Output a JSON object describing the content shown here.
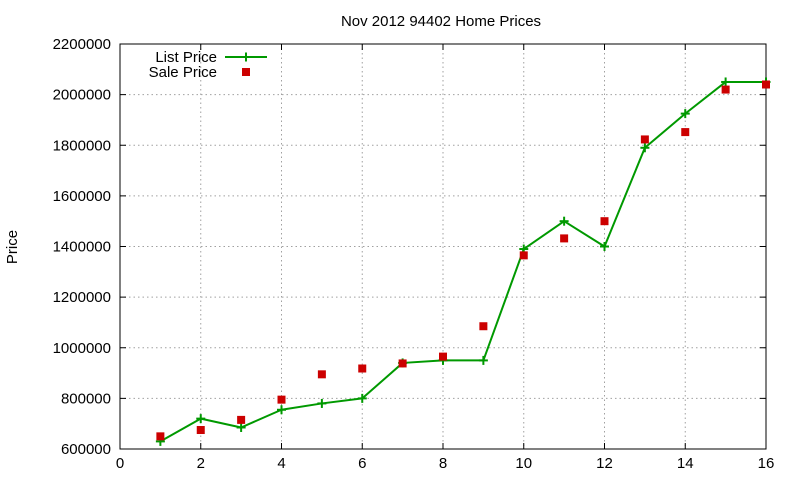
{
  "chart_data": {
    "type": "line",
    "title": "Nov 2012 94402 Home Prices",
    "xlabel": "",
    "ylabel": "Price",
    "xlim": [
      0,
      16
    ],
    "ylim": [
      600000,
      2200000
    ],
    "xticks": [
      0,
      2,
      4,
      6,
      8,
      10,
      12,
      14,
      16
    ],
    "yticks": [
      600000,
      800000,
      1000000,
      1200000,
      1400000,
      1600000,
      1800000,
      2000000,
      2200000
    ],
    "grid": true,
    "legend_position": "top-left",
    "series": [
      {
        "name": "List Price",
        "style": "line-with-plus-markers",
        "color": "#009900",
        "x": [
          1,
          2,
          3,
          4,
          5,
          6,
          7,
          8,
          9,
          10,
          11,
          12,
          13,
          14,
          15,
          16
        ],
        "values": [
          630000,
          720000,
          685000,
          755000,
          780000,
          800000,
          940000,
          950000,
          950000,
          1390000,
          1500000,
          1400000,
          1790000,
          1925000,
          2050000,
          2050000
        ]
      },
      {
        "name": "Sale Price",
        "style": "square-markers",
        "color": "#cc0000",
        "x": [
          1,
          2,
          3,
          4,
          5,
          6,
          7,
          8,
          9,
          10,
          11,
          12,
          13,
          14,
          15,
          16
        ],
        "values": [
          650000,
          675000,
          715000,
          795000,
          895000,
          918000,
          938000,
          965000,
          1085000,
          1365000,
          1432000,
          1500000,
          1823000,
          1852000,
          2020000,
          2040000
        ]
      }
    ]
  }
}
